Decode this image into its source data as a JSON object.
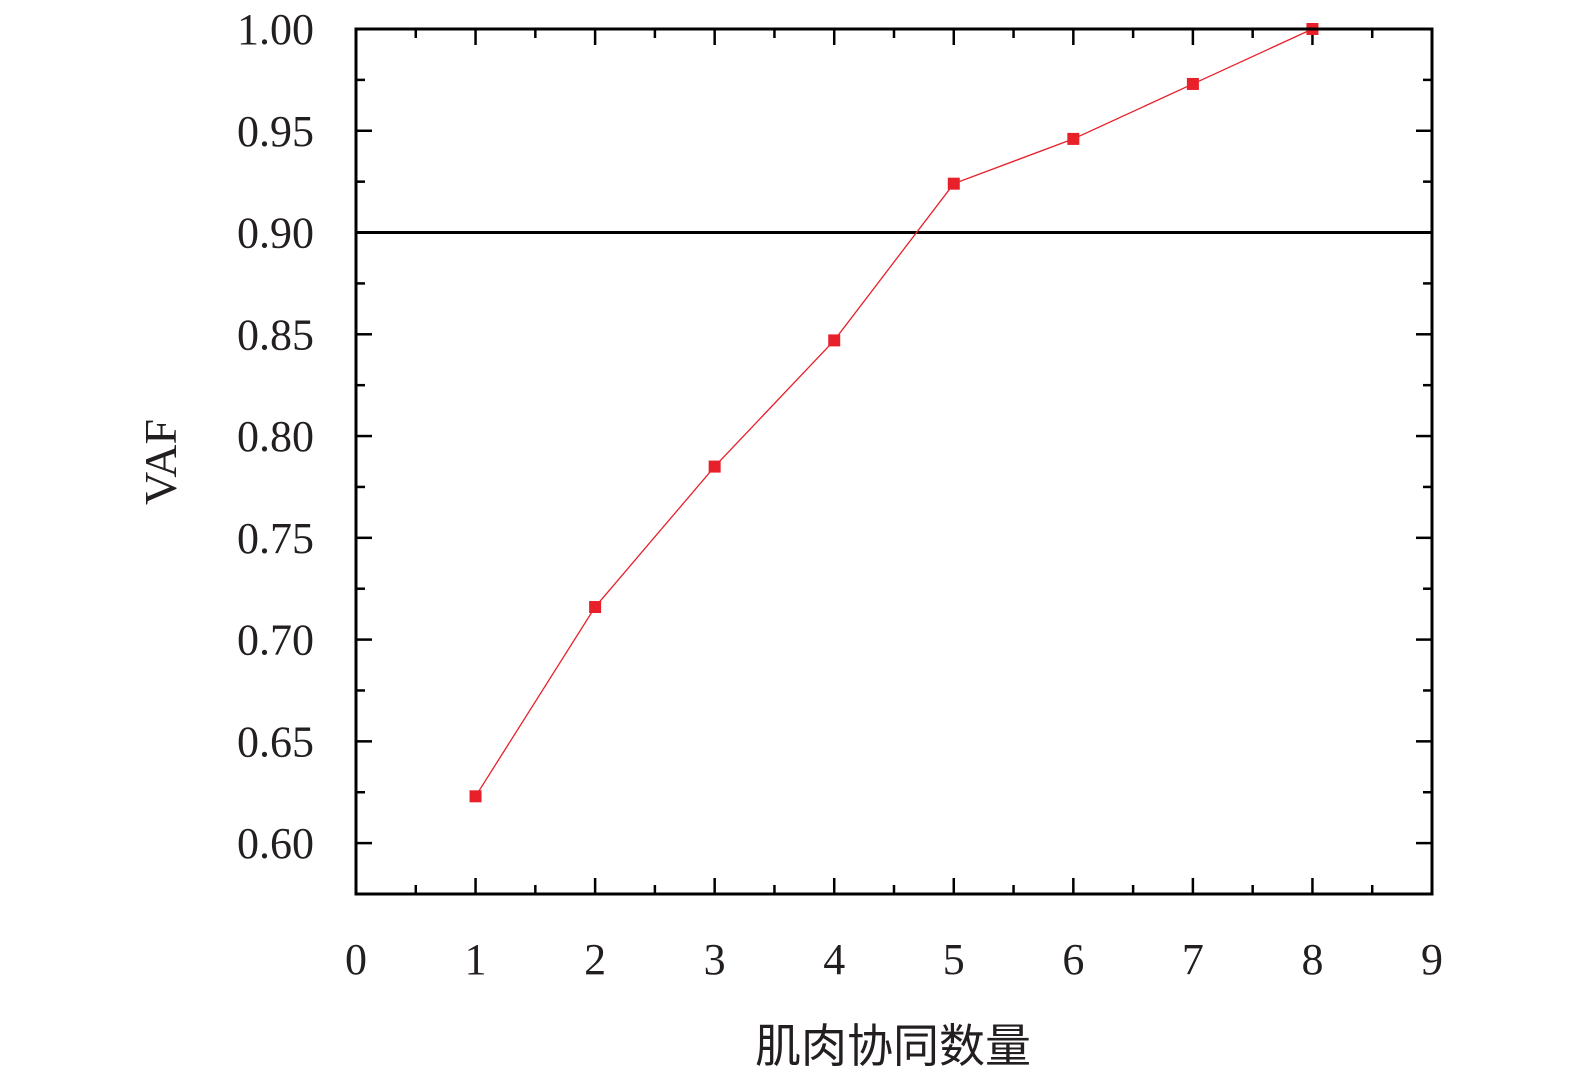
{
  "chart_data": {
    "type": "line",
    "title": "",
    "xlabel": "肌肉协同数量",
    "ylabel": "VAF",
    "xlim": [
      0,
      9
    ],
    "ylim": [
      0.575,
      1.0
    ],
    "x_ticks": [
      0,
      1,
      2,
      3,
      4,
      5,
      6,
      7,
      8,
      9
    ],
    "y_ticks": [
      0.6,
      0.65,
      0.7,
      0.75,
      0.8,
      0.85,
      0.9,
      0.95,
      1.0
    ],
    "x_tick_labels": [
      "0",
      "1",
      "2",
      "3",
      "4",
      "5",
      "6",
      "7",
      "8",
      "9"
    ],
    "y_tick_labels": [
      "0.60",
      "0.65",
      "0.70",
      "0.75",
      "0.80",
      "0.85",
      "0.90",
      "0.95",
      "1.00"
    ],
    "grid": false,
    "reference_line": {
      "y": 0.9,
      "color": "#000000"
    },
    "series": [
      {
        "x": [
          1,
          2,
          3,
          4,
          5,
          6,
          7,
          8
        ],
        "values": [
          0.623,
          0.716,
          0.785,
          0.847,
          0.924,
          0.946,
          0.973,
          1.0
        ],
        "color": "#e8202a",
        "marker": "square"
      }
    ]
  }
}
